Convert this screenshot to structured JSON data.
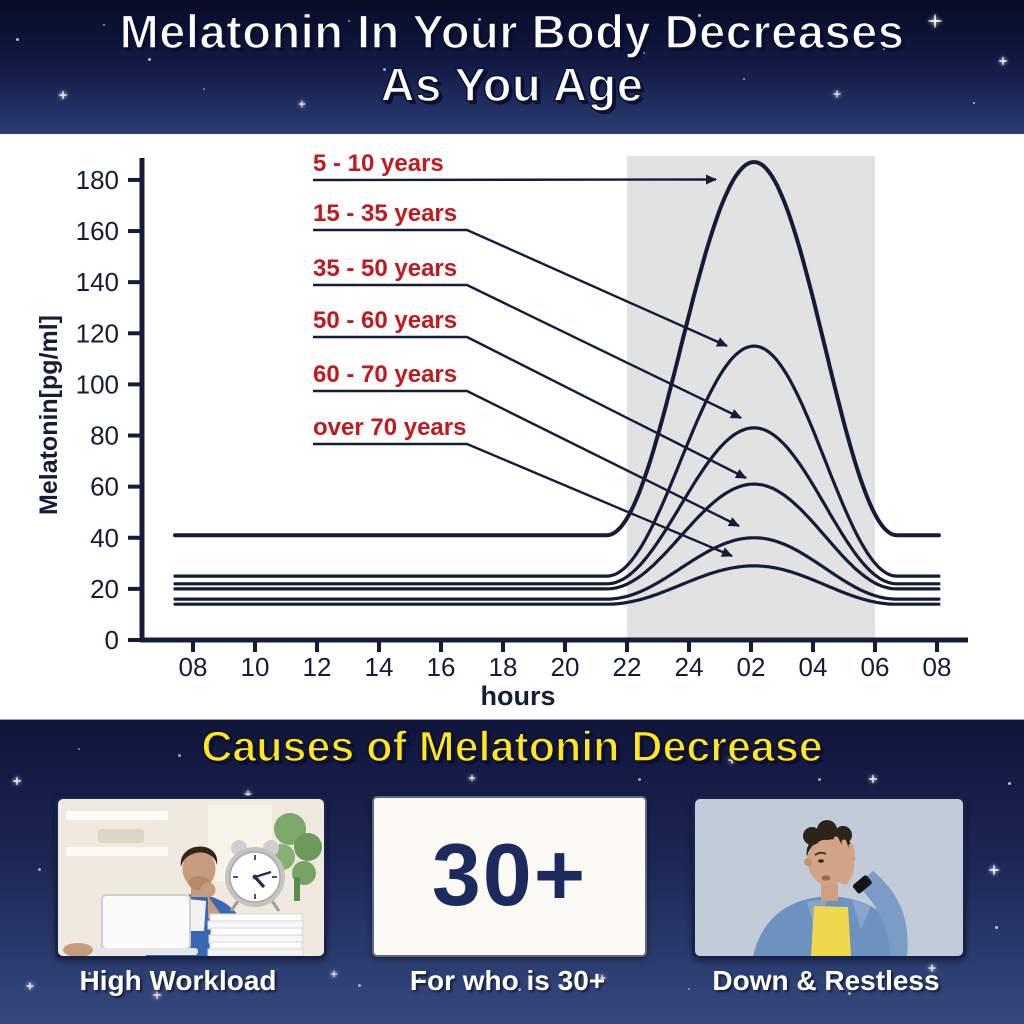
{
  "page": {
    "header": {
      "title_line1": "Melatonin In Your Body Decreases",
      "title_line2": "As You Age"
    },
    "footer": {
      "title": "Causes of Melatonin Decrease",
      "panels": [
        {
          "caption": "High Workload",
          "content": "photo: stressed man at laptop with alarm clock on a stack of papers"
        },
        {
          "caption": "For who is 30+",
          "card_text": "30+"
        },
        {
          "caption": "Down & Restless",
          "content": "photo: weary man pressing his hand over his eye"
        }
      ]
    },
    "colors": {
      "header_bg_top": "#070b26",
      "header_bg_bottom": "#2b3b73",
      "accent_yellow": "#ffe71c",
      "title_white": "#ffffff",
      "navy_ink": "#151c38",
      "legend_red": "#c2191d",
      "card_navy": "#1c2a5e",
      "night_band_grey": "#e2e2e2"
    }
  },
  "chart_data": {
    "type": "line",
    "title": "",
    "xlabel": "hours",
    "ylabel": "Melatonin[pg/ml]",
    "x_tick_labels": [
      "08",
      "10",
      "12",
      "14",
      "16",
      "18",
      "20",
      "22",
      "24",
      "02",
      "04",
      "06",
      "08"
    ],
    "x_tick_hours": [
      8,
      10,
      12,
      14,
      16,
      18,
      20,
      22,
      24,
      26,
      28,
      30,
      32
    ],
    "y_ticks": [
      0,
      20,
      40,
      60,
      80,
      100,
      120,
      140,
      160,
      180
    ],
    "ylim": [
      0,
      190
    ],
    "x_range_hours": [
      7.42,
      32.08
    ],
    "grid": false,
    "legend_position": "left annotations with arrows to each curve",
    "night_band": {
      "from_hour": 22,
      "to_hour": 30,
      "from_label": "22",
      "to_label": "06"
    },
    "curve_shape": {
      "rise_start_hour": 21.35,
      "peak_hour": 26.1,
      "fall_end_hour": 30.7
    },
    "series": [
      {
        "label": "5 - 10 years",
        "day_baseline": 41,
        "night_peak": 187,
        "peak_at_label": "02"
      },
      {
        "label": "15 - 35 years",
        "day_baseline": 25,
        "night_peak": 115,
        "peak_at_label": "02"
      },
      {
        "label": "35 - 50 years",
        "day_baseline": 22,
        "night_peak": 83,
        "peak_at_label": "02"
      },
      {
        "label": "50 - 60 years",
        "day_baseline": 20,
        "night_peak": 61,
        "peak_at_label": "02"
      },
      {
        "label": "60 - 70 years",
        "day_baseline": 16,
        "night_peak": 40,
        "peak_at_label": "02"
      },
      {
        "label": "over 70 years",
        "day_baseline": 14,
        "night_peak": 29,
        "peak_at_label": "02"
      }
    ],
    "line_color": "#151c38",
    "legend_label_color": "#c2191d",
    "band_color": "#e2e2e2"
  }
}
